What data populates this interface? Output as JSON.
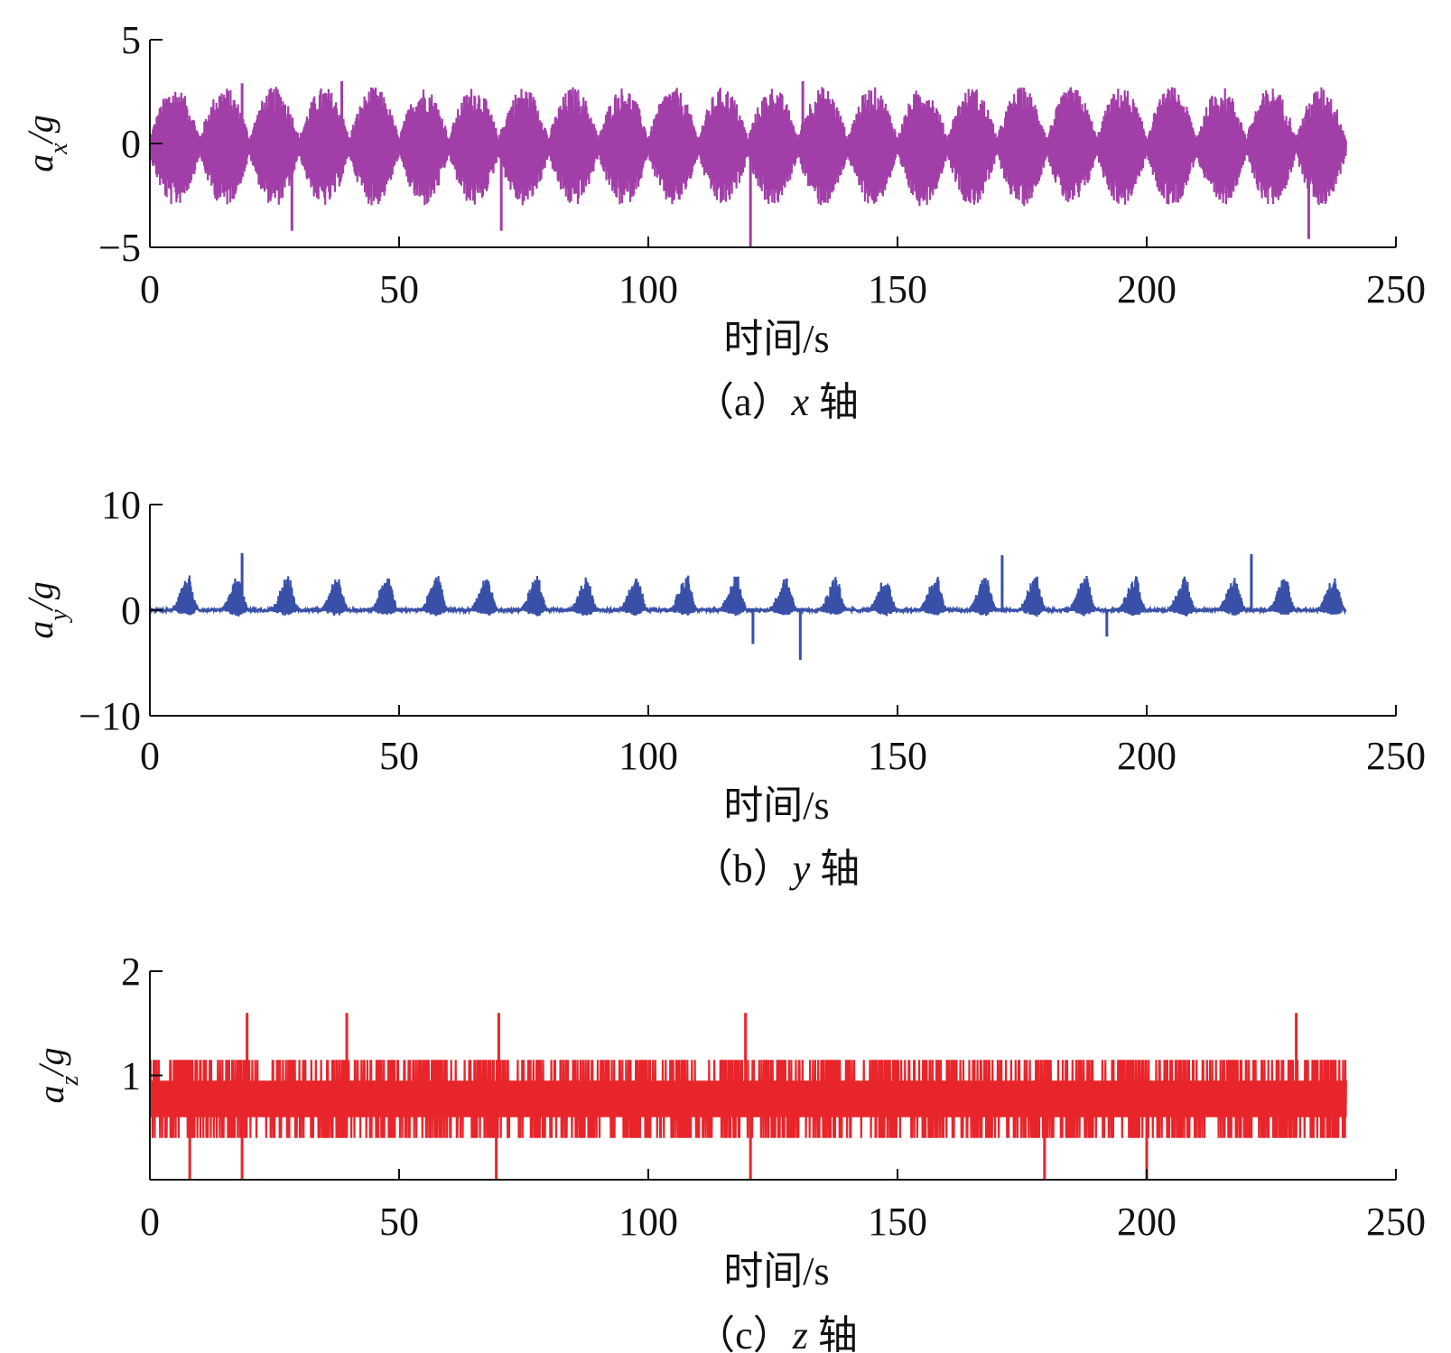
{
  "chart_data": [
    {
      "type": "line",
      "caption": {
        "prefix": "（a）",
        "var": "x",
        "suffix": " 轴"
      },
      "ylabel": {
        "base": "a",
        "sub": "x",
        "unit": "/g"
      },
      "xlabel": "时间/s",
      "xlim": [
        0,
        250
      ],
      "ylim": [
        -5,
        5
      ],
      "xticks": [
        0,
        50,
        100,
        150,
        200,
        250
      ],
      "yticks": [
        5,
        0,
        -5
      ],
      "ytick_labels": [
        "5",
        "0",
        "−5"
      ],
      "color": "#a23ea8",
      "series": [
        {
          "name": "ax",
          "x_range": [
            0,
            240
          ],
          "baseline": -0.15,
          "period": 10,
          "envelope_peak": 2.5,
          "envelope_floor": 0.4,
          "spikes": [
            {
              "x": 18.5,
              "value": 2.9
            },
            {
              "x": 28.5,
              "value": -4.2
            },
            {
              "x": 38.5,
              "value": 3.0
            },
            {
              "x": 70.5,
              "value": -4.2
            },
            {
              "x": 120.5,
              "value": -5.0
            },
            {
              "x": 131,
              "value": 3.0
            },
            {
              "x": 232.5,
              "value": -4.6
            }
          ]
        }
      ]
    },
    {
      "type": "line",
      "caption": {
        "prefix": "（b）",
        "var": "y",
        "suffix": " 轴"
      },
      "ylabel": {
        "base": "a",
        "sub": "y",
        "unit": "/g"
      },
      "xlabel": "时间/s",
      "xlim": [
        0,
        250
      ],
      "ylim": [
        -10,
        10
      ],
      "xticks": [
        0,
        50,
        100,
        150,
        200,
        250
      ],
      "yticks": [
        10,
        0,
        -10
      ],
      "ytick_labels": [
        "10",
        "0",
        "−10"
      ],
      "color": "#3850a8",
      "series": [
        {
          "name": "ay",
          "x_range": [
            0,
            240
          ],
          "baseline": 0.0,
          "period": 10,
          "peak": 3.8,
          "spikes": [
            {
              "x": 18.5,
              "value": 5.4
            },
            {
              "x": 121,
              "value": -3.2
            },
            {
              "x": 130.5,
              "value": -4.7
            },
            {
              "x": 171,
              "value": 5.2
            },
            {
              "x": 192,
              "value": -2.5
            },
            {
              "x": 221,
              "value": 5.3
            }
          ]
        }
      ]
    },
    {
      "type": "line",
      "caption": {
        "prefix": "（c）",
        "var": "z",
        "suffix": " 轴"
      },
      "ylabel": {
        "base": "a",
        "sub": "z",
        "unit": "/g"
      },
      "xlabel": "时间/s",
      "xlim": [
        0,
        250
      ],
      "ylim": [
        0,
        2
      ],
      "xticks": [
        0,
        50,
        100,
        150,
        200,
        250
      ],
      "yticks": [
        2,
        1
      ],
      "ytick_labels": [
        "2",
        "1"
      ],
      "color": "#e8252b",
      "series": [
        {
          "name": "az",
          "x_range": [
            0,
            240
          ],
          "baseline": 0.75,
          "levels": [
            0.4,
            0.6,
            0.95,
            1.15
          ],
          "spikes": [
            {
              "x": 19.5,
              "value": 1.6
            },
            {
              "x": 39.5,
              "value": 1.6
            },
            {
              "x": 70,
              "value": 1.6
            },
            {
              "x": 119.5,
              "value": 1.6
            },
            {
              "x": 230,
              "value": 1.6
            },
            {
              "x": 8,
              "value": 0.0
            },
            {
              "x": 18.5,
              "value": 0.0
            },
            {
              "x": 69.5,
              "value": 0.0
            },
            {
              "x": 120.5,
              "value": 0.0
            },
            {
              "x": 179.5,
              "value": 0.0
            },
            {
              "x": 200,
              "value": 0.0
            }
          ]
        }
      ]
    }
  ]
}
